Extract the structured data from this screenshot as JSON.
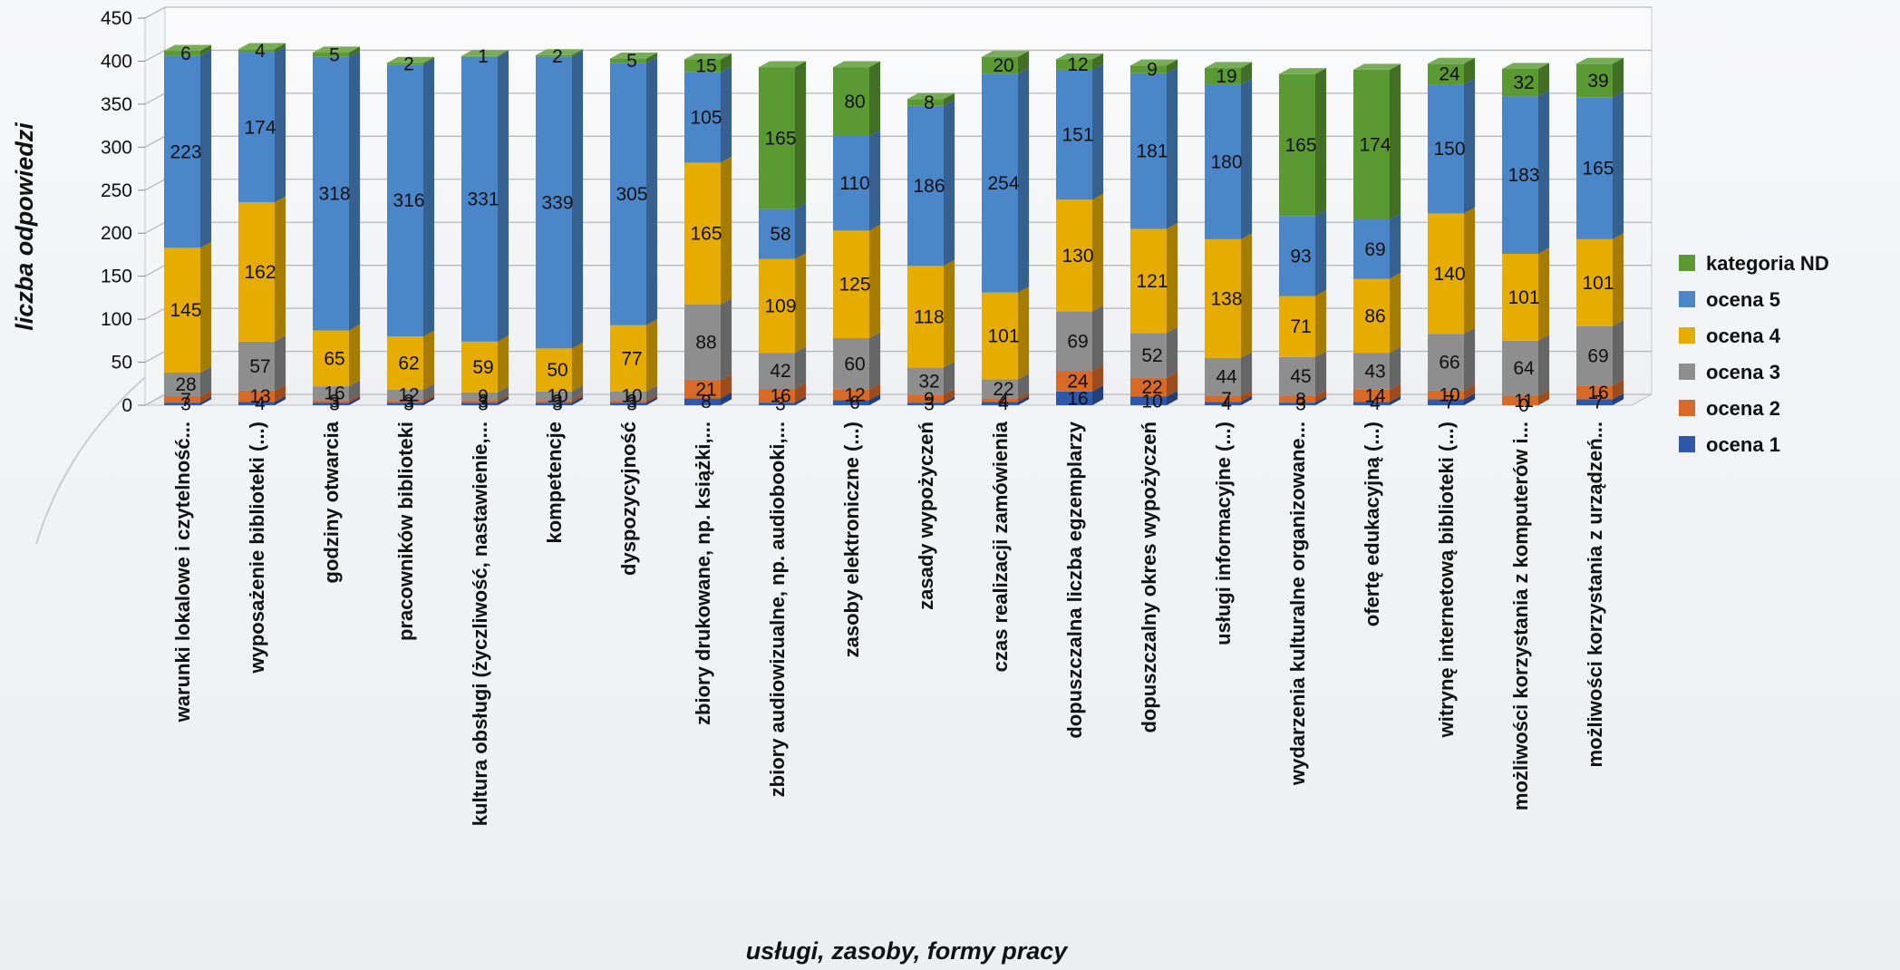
{
  "chart_data": {
    "type": "bar",
    "stacked": true,
    "style": "3d-columns",
    "xlabel": "usługi, zasoby, formy pracy",
    "ylabel": "liczba odpowiedzi",
    "ylim": [
      0,
      450
    ],
    "yticks": [
      0,
      50,
      100,
      150,
      200,
      250,
      300,
      350,
      400,
      450
    ],
    "grid": true,
    "legend_position": "right",
    "categories": [
      "warunki lokalowe i czytelność...",
      "wyposażenie biblioteki (...)",
      "godziny otwarcia",
      "pracowników biblioteki",
      "kultura obsługi (życzliwość, nastawienie,...",
      "kompetencje",
      "dyspozycyjność",
      "zbiory drukowane, np. książki,...",
      "zbiory audiowizualne, np. audiobooki,...",
      "zasoby elektroniczne (...)",
      "zasady wypożyczeń",
      "czas realizacji zamówienia",
      "dopuszczalna liczba egzemplarzy",
      "dopuszczalny okres wypożyczeń",
      "usługi informacyjne (...)",
      "wydarzenia kulturalne organizowane...",
      "ofertę edukacyjną (...)",
      "witrynę internetową biblioteki (...)",
      "możliwości korzystania z komputerów i...",
      "możliwości korzystania z urządzeń..."
    ],
    "series": [
      {
        "name": "ocena 1",
        "color": "#2f58a8",
        "values": [
          3,
          4,
          3,
          3,
          3,
          3,
          3,
          8,
          3,
          6,
          3,
          4,
          16,
          10,
          4,
          3,
          4,
          7,
          0,
          7
        ]
      },
      {
        "name": "ocena 2",
        "color": "#d86a28",
        "values": [
          7,
          13,
          3,
          3,
          3,
          3,
          3,
          21,
          16,
          12,
          9,
          4,
          24,
          22,
          7,
          8,
          14,
          10,
          11,
          16
        ]
      },
      {
        "name": "ocena 3",
        "color": "#8e8e8e",
        "values": [
          28,
          57,
          16,
          12,
          9,
          10,
          10,
          88,
          42,
          60,
          32,
          22,
          69,
          52,
          44,
          45,
          43,
          66,
          64,
          69
        ]
      },
      {
        "name": "ocena 4",
        "color": "#e6ac00",
        "values": [
          145,
          162,
          65,
          62,
          59,
          50,
          77,
          165,
          109,
          125,
          118,
          101,
          130,
          121,
          138,
          71,
          86,
          140,
          101,
          101
        ]
      },
      {
        "name": "ocena 5",
        "color": "#4a86c8",
        "values": [
          223,
          174,
          318,
          316,
          331,
          339,
          305,
          105,
          58,
          110,
          186,
          254,
          151,
          181,
          180,
          93,
          69,
          150,
          183,
          165
        ]
      },
      {
        "name": "kategoria ND",
        "color": "#5b9a33",
        "values": [
          6,
          4,
          5,
          2,
          1,
          2,
          5,
          15,
          165,
          80,
          8,
          20,
          12,
          9,
          19,
          165,
          174,
          24,
          32,
          39
        ]
      }
    ]
  }
}
